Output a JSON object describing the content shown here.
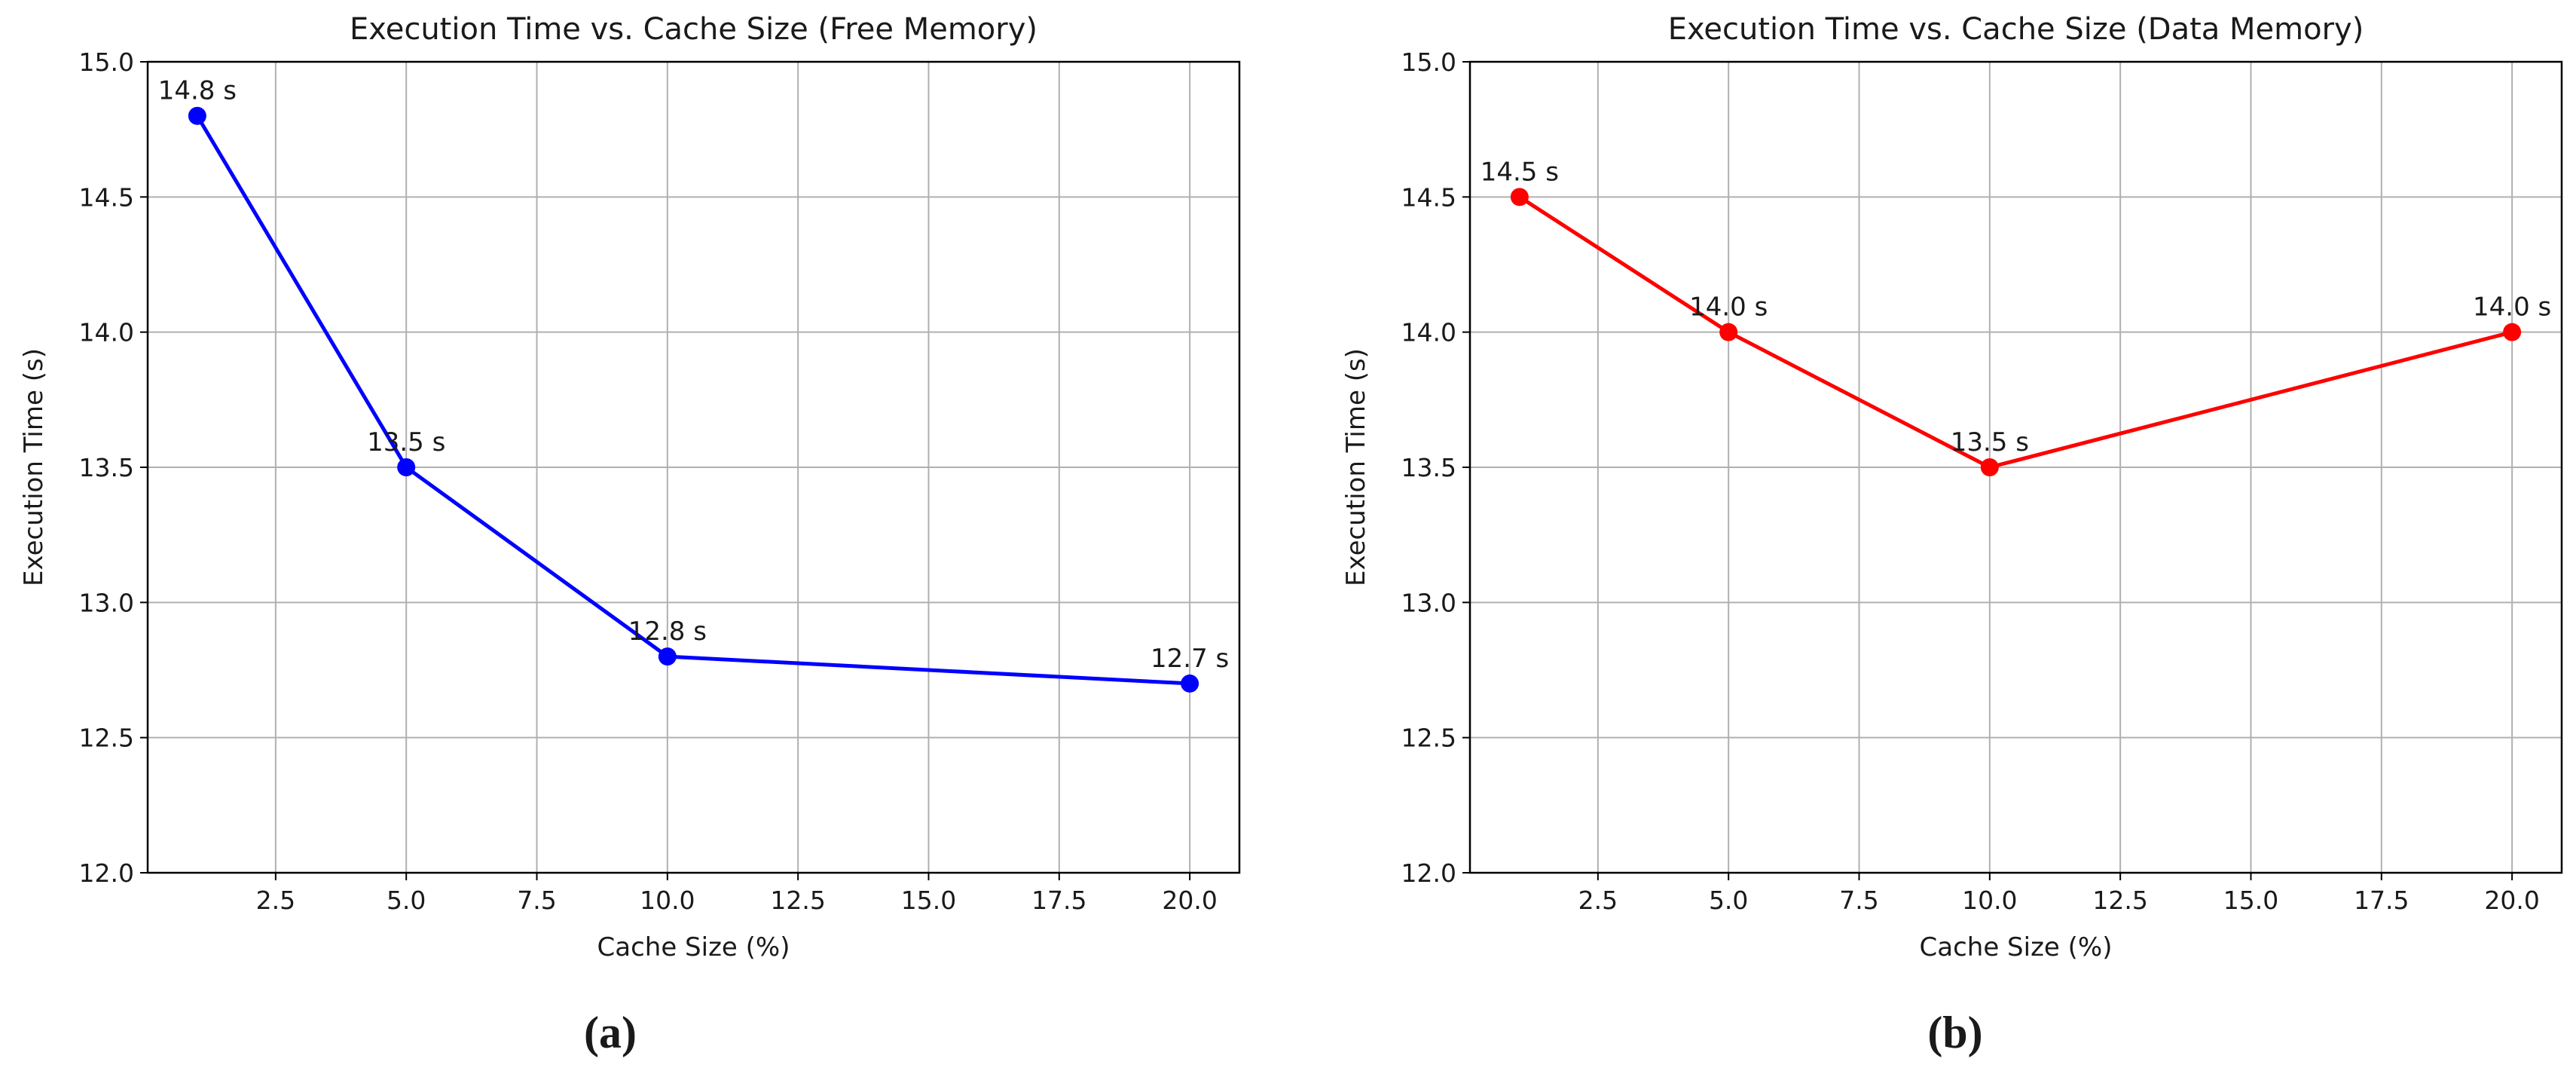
{
  "chart_data": [
    {
      "type": "line",
      "title": "Execution Time vs. Cache Size (Free Memory)",
      "xlabel": "Cache Size (%)",
      "ylabel": "Execution Time (s)",
      "panel_label": "(a)",
      "x": [
        1,
        5,
        10,
        20
      ],
      "series": [
        {
          "values": [
            14.8,
            13.5,
            12.8,
            12.7
          ],
          "labels": [
            "14.8 s",
            "13.5 s",
            "12.8 s",
            "12.7 s"
          ],
          "color": "#0000ff"
        }
      ],
      "xlim": [
        0.05,
        20.95
      ],
      "ylim": [
        12.0,
        15.0
      ],
      "xticks": [
        2.5,
        5.0,
        7.5,
        10.0,
        12.5,
        15.0,
        17.5,
        20.0
      ],
      "xtick_labels": [
        "2.5",
        "5.0",
        "7.5",
        "10.0",
        "12.5",
        "15.0",
        "17.5",
        "20.0"
      ],
      "yticks": [
        12.0,
        12.5,
        13.0,
        13.5,
        14.0,
        14.5,
        15.0
      ],
      "ytick_labels": [
        "12.0",
        "12.5",
        "13.0",
        "13.5",
        "14.0",
        "14.5",
        "15.0"
      ],
      "grid": true
    },
    {
      "type": "line",
      "title": "Execution Time vs. Cache Size (Data Memory)",
      "xlabel": "Cache Size (%)",
      "ylabel": "Execution Time (s)",
      "panel_label": "(b)",
      "x": [
        1,
        5,
        10,
        20
      ],
      "series": [
        {
          "values": [
            14.5,
            14.0,
            13.5,
            14.0
          ],
          "labels": [
            "14.5 s",
            "14.0 s",
            "13.5 s",
            "14.0 s"
          ],
          "color": "#ff0000"
        }
      ],
      "xlim": [
        0.05,
        20.95
      ],
      "ylim": [
        12.0,
        15.0
      ],
      "xticks": [
        2.5,
        5.0,
        7.5,
        10.0,
        12.5,
        15.0,
        17.5,
        20.0
      ],
      "xtick_labels": [
        "2.5",
        "5.0",
        "7.5",
        "10.0",
        "12.5",
        "15.0",
        "17.5",
        "20.0"
      ],
      "yticks": [
        12.0,
        12.5,
        13.0,
        13.5,
        14.0,
        14.5,
        15.0
      ],
      "ytick_labels": [
        "12.0",
        "12.5",
        "13.0",
        "13.5",
        "14.0",
        "14.5",
        "15.0"
      ],
      "grid": true
    }
  ]
}
